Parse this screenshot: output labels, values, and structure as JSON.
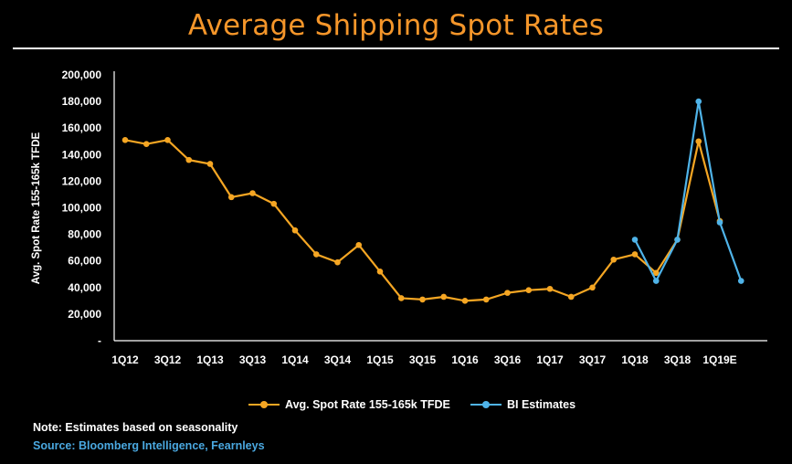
{
  "chart_data": {
    "type": "line",
    "title": "Average Shipping Spot Rates",
    "ylabel": "Avg. Spot Rate 155-165k TFDE",
    "ylim": [
      0,
      200000
    ],
    "yticks": [
      0,
      20000,
      40000,
      60000,
      80000,
      100000,
      120000,
      140000,
      160000,
      180000,
      200000
    ],
    "ytick_labels": [
      "-",
      "20,000",
      "40,000",
      "60,000",
      "80,000",
      "100,000",
      "120,000",
      "140,000",
      "160,000",
      "180,000",
      "200,000"
    ],
    "categories": [
      "1Q12",
      "2Q12",
      "3Q12",
      "4Q12",
      "1Q13",
      "2Q13",
      "3Q13",
      "4Q13",
      "1Q14",
      "2Q14",
      "3Q14",
      "4Q14",
      "1Q15",
      "2Q15",
      "3Q15",
      "4Q15",
      "1Q16",
      "2Q16",
      "3Q16",
      "4Q16",
      "1Q17",
      "2Q17",
      "3Q17",
      "4Q17",
      "1Q18",
      "2Q18",
      "3Q18",
      "4Q18",
      "1Q19E",
      "2Q19E"
    ],
    "xtick_labels": [
      "1Q12",
      "3Q12",
      "1Q13",
      "3Q13",
      "1Q14",
      "3Q14",
      "1Q15",
      "3Q15",
      "1Q16",
      "3Q16",
      "1Q17",
      "3Q17",
      "1Q18",
      "3Q18",
      "1Q19E"
    ],
    "grid": false,
    "legend_position": "bottom",
    "series": [
      {
        "name": "Avg. Spot Rate 155-165k TFDE",
        "color": "#f5a623",
        "values": [
          151000,
          148000,
          151000,
          136000,
          133000,
          108000,
          111000,
          103000,
          83000,
          65000,
          59000,
          72000,
          52000,
          32000,
          31000,
          33000,
          30000,
          31000,
          36000,
          38000,
          39000,
          33000,
          40000,
          61000,
          65000,
          51000,
          76000,
          150000,
          90000,
          null
        ]
      },
      {
        "name": "BI Estimates",
        "color": "#4fb3e8",
        "values": [
          null,
          null,
          null,
          null,
          null,
          null,
          null,
          null,
          null,
          null,
          null,
          null,
          null,
          null,
          null,
          null,
          null,
          null,
          null,
          null,
          null,
          null,
          null,
          null,
          76000,
          45000,
          76000,
          180000,
          89000,
          45000
        ]
      }
    ]
  },
  "footer": {
    "note": "Note: Estimates based on seasonality",
    "source": "Source: Bloomberg Intelligence, Fearnleys"
  }
}
